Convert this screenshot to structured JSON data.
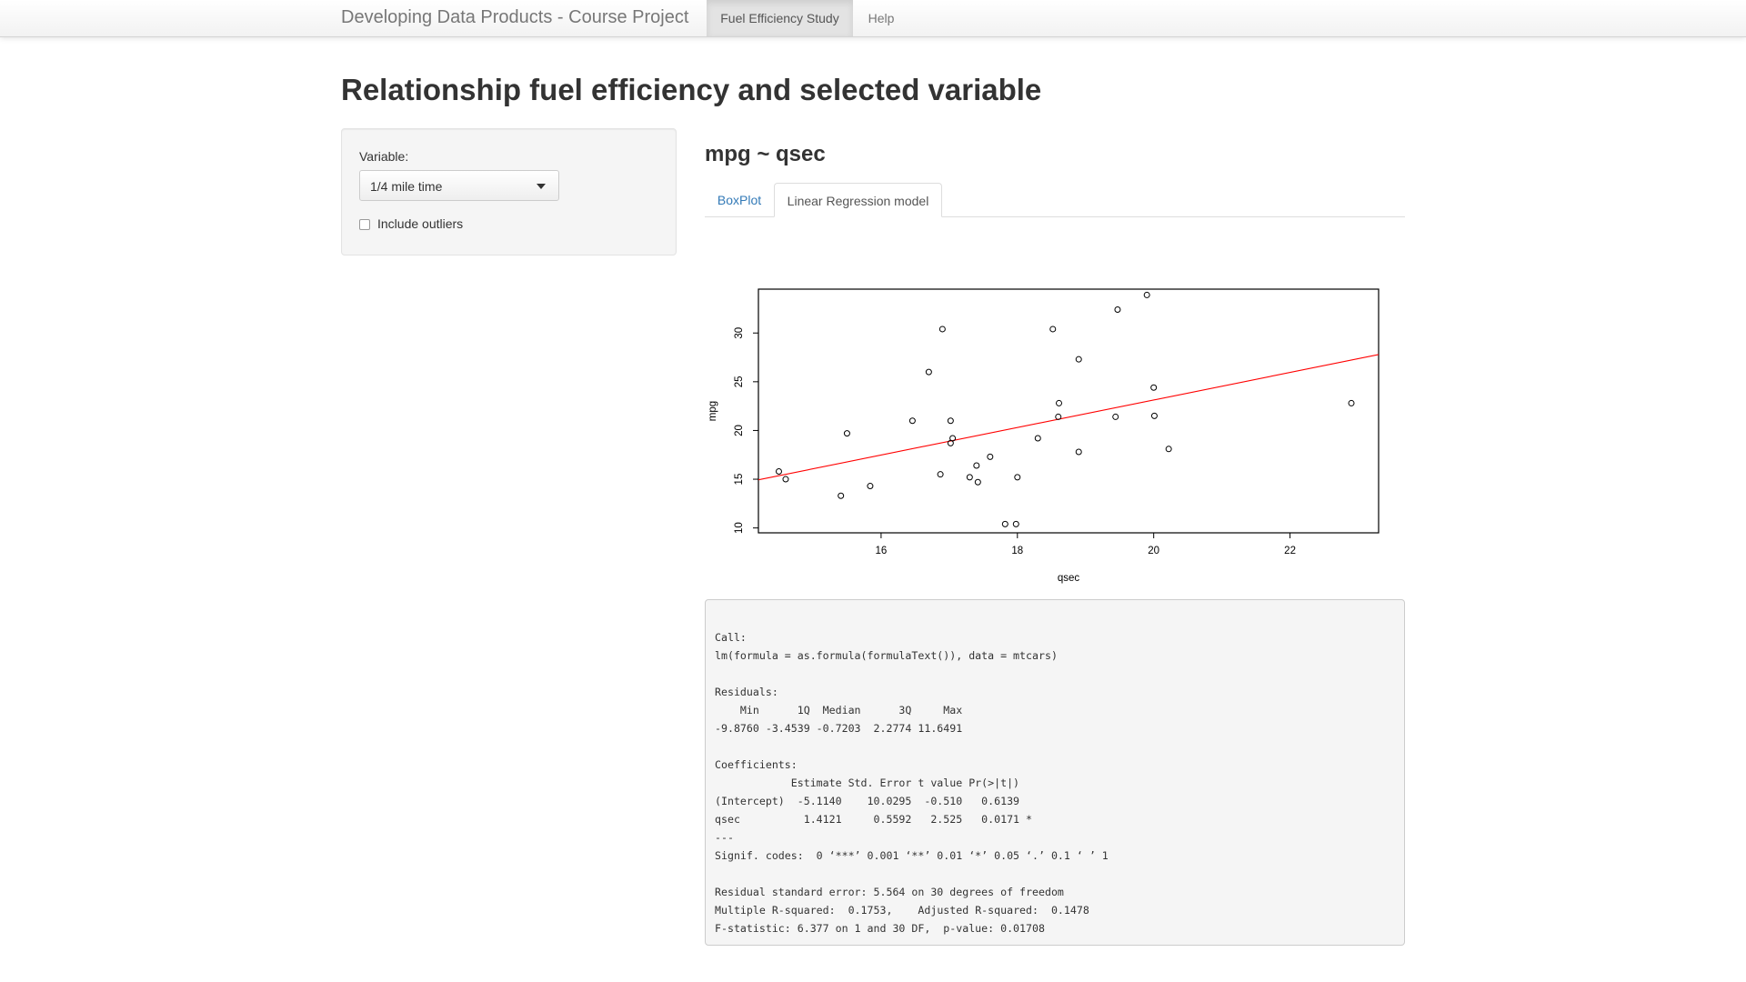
{
  "navbar": {
    "brand": "Developing Data Products - Course Project",
    "tabs": [
      {
        "label": "Fuel Efficiency Study",
        "active": true
      },
      {
        "label": "Help",
        "active": false
      }
    ]
  },
  "page_title": "Relationship fuel efficiency and selected variable",
  "sidebar": {
    "variable_label": "Variable:",
    "variable_selected": "1/4 mile time",
    "outliers_label": "Include outliers",
    "outliers_checked": false
  },
  "main": {
    "formula_heading": "mpg ~ qsec",
    "tabs": [
      {
        "label": "BoxPlot",
        "active": false
      },
      {
        "label": "Linear Regression model",
        "active": true
      }
    ]
  },
  "chart_data": {
    "type": "scatter",
    "xlabel": "qsec",
    "ylabel": "mpg",
    "xlim": [
      14.2,
      23.3
    ],
    "ylim": [
      9.5,
      34.5
    ],
    "x_ticks": [
      16,
      18,
      20,
      22
    ],
    "y_ticks": [
      10,
      15,
      20,
      25,
      30
    ],
    "grid": false,
    "point_color": "#000000",
    "fit_line": {
      "intercept": -5.114,
      "slope": 1.4121,
      "color": "#ff0000"
    },
    "points": [
      {
        "x": 16.46,
        "y": 21.0
      },
      {
        "x": 17.02,
        "y": 21.0
      },
      {
        "x": 18.61,
        "y": 22.8
      },
      {
        "x": 19.44,
        "y": 21.4
      },
      {
        "x": 17.02,
        "y": 18.7
      },
      {
        "x": 20.22,
        "y": 18.1
      },
      {
        "x": 15.84,
        "y": 14.3
      },
      {
        "x": 20.0,
        "y": 24.4
      },
      {
        "x": 22.9,
        "y": 22.8
      },
      {
        "x": 18.3,
        "y": 19.2
      },
      {
        "x": 18.9,
        "y": 17.8
      },
      {
        "x": 17.4,
        "y": 16.4
      },
      {
        "x": 17.6,
        "y": 17.3
      },
      {
        "x": 18.0,
        "y": 15.2
      },
      {
        "x": 17.98,
        "y": 10.4
      },
      {
        "x": 17.82,
        "y": 10.4
      },
      {
        "x": 17.42,
        "y": 14.7
      },
      {
        "x": 19.47,
        "y": 32.4
      },
      {
        "x": 18.52,
        "y": 30.4
      },
      {
        "x": 19.9,
        "y": 33.9
      },
      {
        "x": 20.01,
        "y": 21.5
      },
      {
        "x": 16.87,
        "y": 15.5
      },
      {
        "x": 17.3,
        "y": 15.2
      },
      {
        "x": 15.41,
        "y": 13.3
      },
      {
        "x": 17.05,
        "y": 19.2
      },
      {
        "x": 18.9,
        "y": 27.3
      },
      {
        "x": 16.7,
        "y": 26.0
      },
      {
        "x": 16.9,
        "y": 30.4
      },
      {
        "x": 14.5,
        "y": 15.8
      },
      {
        "x": 15.5,
        "y": 19.7
      },
      {
        "x": 14.6,
        "y": 15.0
      },
      {
        "x": 18.6,
        "y": 21.4
      }
    ]
  },
  "regression_output": {
    "lines": [
      "Call:",
      "lm(formula = as.formula(formulaText()), data = mtcars)",
      "",
      "Residuals:",
      "    Min      1Q  Median      3Q     Max ",
      "-9.8760 -3.4539 -0.7203  2.2774 11.6491 ",
      "",
      "Coefficients:",
      "            Estimate Std. Error t value Pr(>|t|)  ",
      "(Intercept)  -5.1140    10.0295  -0.510   0.6139  ",
      "qsec          1.4121     0.5592   2.525   0.0171 *",
      "---",
      "Signif. codes:  0 ‘***’ 0.001 ‘**’ 0.01 ‘*’ 0.05 ‘.’ 0.1 ‘ ’ 1",
      "",
      "Residual standard error: 5.564 on 30 degrees of freedom",
      "Multiple R-squared:  0.1753,\tAdjusted R-squared:  0.1478 ",
      "F-statistic: 6.377 on 1 and 30 DF,  p-value: 0.01708"
    ]
  }
}
